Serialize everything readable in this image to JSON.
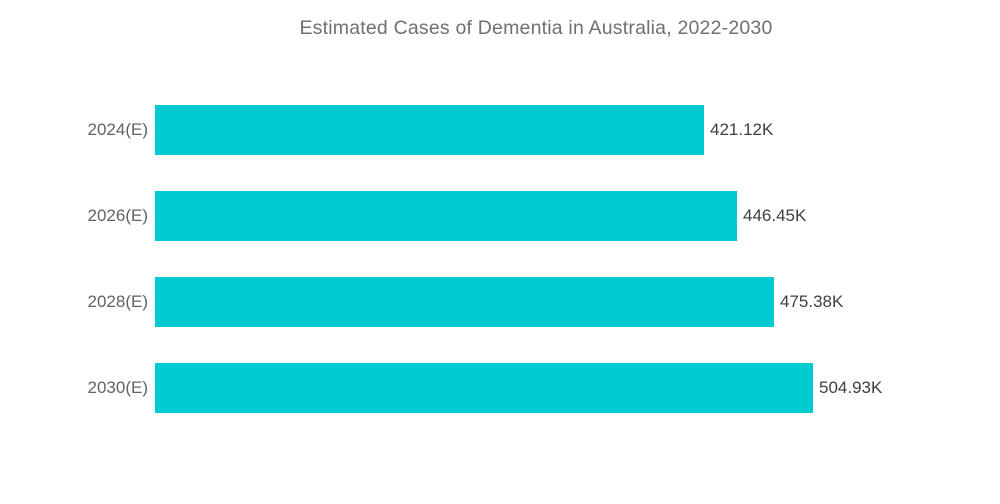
{
  "chart_data": {
    "type": "bar",
    "orientation": "horizontal",
    "title": "Estimated Cases of Dementia in Australia, 2022-2030",
    "categories": [
      "2024(E)",
      "2026(E)",
      "2028(E)",
      "2030(E)"
    ],
    "values": [
      421.12,
      446.45,
      475.38,
      504.93
    ],
    "value_labels": [
      "421.12K",
      "446.45K",
      "475.38K",
      "504.93K"
    ],
    "unit": "K",
    "xlim": [
      0,
      504.93
    ],
    "grid": false,
    "legend": false,
    "colors": {
      "bar": "#00cbd2",
      "category_label": "#5e6467",
      "value_label": "#3c4043",
      "title": "#6d7174",
      "background": "#ffffff"
    }
  }
}
